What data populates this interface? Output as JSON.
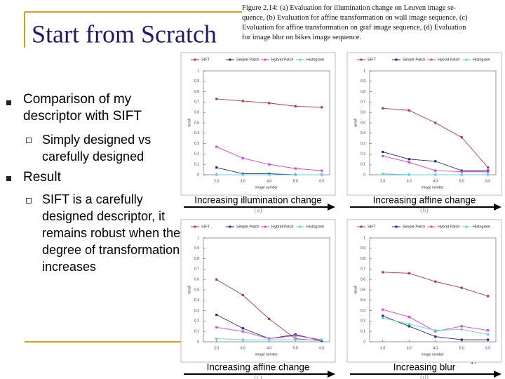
{
  "slide": {
    "title": "Start from Scratch",
    "figure_caption": [
      "Figure 2.14: (a) Evaluation for illumination change on Leuven image se-",
      "quence, (b) Evaluation for affine transformation on wall image sequence, (c)",
      "Evaluation for affine transformation on graf image sequence, (d) Evaluation",
      "for image blur on bikes image sequence."
    ],
    "bullets": [
      {
        "text": "Comparison of my descriptor with SIFT",
        "sub": [
          "Simply designed vs carefully designed"
        ]
      },
      {
        "text": "Result",
        "sub": [
          "SIFT is a carefully designed descriptor, it remains robust when the degree of transformation increases"
        ]
      }
    ],
    "page_number": "17"
  },
  "chart_data": [
    {
      "type": "line",
      "panel_label": "(a)",
      "arrow_label": "Increasing illumination change",
      "xlabel": "image number",
      "ylabel": "recall",
      "x": [
        2,
        3,
        4,
        5,
        6
      ],
      "xlim": [
        1.5,
        6.3
      ],
      "ylim": [
        0,
        1
      ],
      "xticks": [
        {
          "value": 2,
          "label": "2.0"
        },
        {
          "value": 3,
          "label": "3.0"
        },
        {
          "value": 4,
          "label": "4.0"
        },
        {
          "value": 5,
          "label": "5.0"
        },
        {
          "value": 6,
          "label": "6.0"
        }
      ],
      "yticks": [
        0,
        0.1,
        0.2,
        0.3,
        0.4,
        0.5,
        0.6,
        0.7,
        0.8,
        0.9,
        1
      ],
      "series": [
        {
          "name": "SIFT",
          "color": "#b03a3a",
          "values": [
            0.73,
            0.71,
            0.69,
            0.66,
            0.65
          ]
        },
        {
          "name": "Simple Patch",
          "color": "#1f2a7a",
          "values": [
            0.07,
            0.01,
            0.01,
            0,
            0
          ]
        },
        {
          "name": "Hybrid Patch",
          "color": "#e040d8",
          "values": [
            0.27,
            0.16,
            0.1,
            0.06,
            0.04
          ]
        },
        {
          "name": "Histogram",
          "color": "#5fd3e3",
          "values": [
            0,
            0,
            0,
            0,
            0
          ]
        }
      ]
    },
    {
      "type": "line",
      "panel_label": "(b)",
      "arrow_label": "Increasing affine change",
      "xlabel": "image number",
      "ylabel": "recall",
      "x": [
        2,
        3,
        4,
        5,
        6
      ],
      "xlim": [
        1.5,
        6.3
      ],
      "ylim": [
        0,
        1
      ],
      "xticks": [
        {
          "value": 2,
          "label": "2.0"
        },
        {
          "value": 3,
          "label": "3.0"
        },
        {
          "value": 4,
          "label": "4.0"
        },
        {
          "value": 5,
          "label": "5.0"
        },
        {
          "value": 6,
          "label": "6.0"
        }
      ],
      "yticks": [
        0,
        0.1,
        0.2,
        0.3,
        0.4,
        0.5,
        0.6,
        0.7,
        0.8,
        0.9,
        1
      ],
      "series": [
        {
          "name": "SIFT",
          "color": "#b03a3a",
          "values": [
            0.64,
            0.62,
            0.5,
            0.36,
            0.07
          ]
        },
        {
          "name": "Simple Patch",
          "color": "#1f2a7a",
          "values": [
            0.22,
            0.15,
            0.13,
            0.04,
            0.04
          ]
        },
        {
          "name": "Hybrid Patch",
          "color": "#e040d8",
          "values": [
            0.18,
            0.12,
            0.04,
            0.03,
            0.03
          ]
        },
        {
          "name": "Histogram",
          "color": "#5fd3e3",
          "values": [
            0.01,
            0,
            0,
            0,
            0
          ]
        }
      ]
    },
    {
      "type": "line",
      "panel_label": "(c)",
      "arrow_label": "Increasing affine change",
      "xlabel": "image number",
      "ylabel": "recall",
      "x": [
        2,
        3,
        4,
        5,
        6
      ],
      "xlim": [
        1.5,
        6.3
      ],
      "ylim": [
        0,
        1
      ],
      "xticks": [
        {
          "value": 2,
          "label": "2.0"
        },
        {
          "value": 3,
          "label": "3.0"
        },
        {
          "value": 4,
          "label": "4.0"
        },
        {
          "value": 5,
          "label": "5.0"
        },
        {
          "value": 6,
          "label": "6.0"
        }
      ],
      "yticks": [
        0,
        0.1,
        0.2,
        0.3,
        0.4,
        0.5,
        0.6,
        0.7,
        0.8,
        0.9,
        1
      ],
      "series": [
        {
          "name": "SIFT",
          "color": "#b03a3a",
          "values": [
            0.6,
            0.45,
            0.22,
            0.03,
            0.01
          ]
        },
        {
          "name": "Simple Patch",
          "color": "#1f2a7a",
          "values": [
            0.26,
            0.13,
            0.03,
            0.07,
            0.01
          ]
        },
        {
          "name": "Hybrid Patch",
          "color": "#e040d8",
          "values": [
            0.14,
            0.1,
            0.03,
            0.06,
            0.02
          ]
        },
        {
          "name": "Histogram",
          "color": "#5fd3e3",
          "values": [
            0.03,
            0.02,
            0.02,
            0.02,
            0.02
          ]
        }
      ]
    },
    {
      "type": "line",
      "panel_label": "(d)",
      "arrow_label": "Increasing blur",
      "xlabel": "image number",
      "ylabel": "recall",
      "x": [
        2,
        3,
        4,
        5,
        6
      ],
      "xlim": [
        1.5,
        6.3
      ],
      "ylim": [
        0,
        1
      ],
      "xticks": [
        {
          "value": 2,
          "label": "2.0"
        },
        {
          "value": 3,
          "label": "3.0"
        },
        {
          "value": 4,
          "label": "4.0"
        },
        {
          "value": 5,
          "label": "5.0"
        },
        {
          "value": 6,
          "label": "6.0"
        }
      ],
      "yticks": [
        0,
        0.1,
        0.2,
        0.3,
        0.4,
        0.5,
        0.6,
        0.7,
        0.8,
        0.9,
        1
      ],
      "series": [
        {
          "name": "SIFT",
          "color": "#b03a3a",
          "values": [
            0.67,
            0.66,
            0.58,
            0.52,
            0.44
          ]
        },
        {
          "name": "Simple Patch",
          "color": "#1f2a7a",
          "values": [
            0.25,
            0.15,
            0.05,
            0.02,
            0.02
          ]
        },
        {
          "name": "Hybrid Patch",
          "color": "#e040d8",
          "values": [
            0.31,
            0.24,
            0.1,
            0.15,
            0.11
          ]
        },
        {
          "name": "Histogram",
          "color": "#5fd3e3",
          "values": [
            0.23,
            0.17,
            0.11,
            0.12,
            0.07
          ]
        }
      ]
    }
  ]
}
